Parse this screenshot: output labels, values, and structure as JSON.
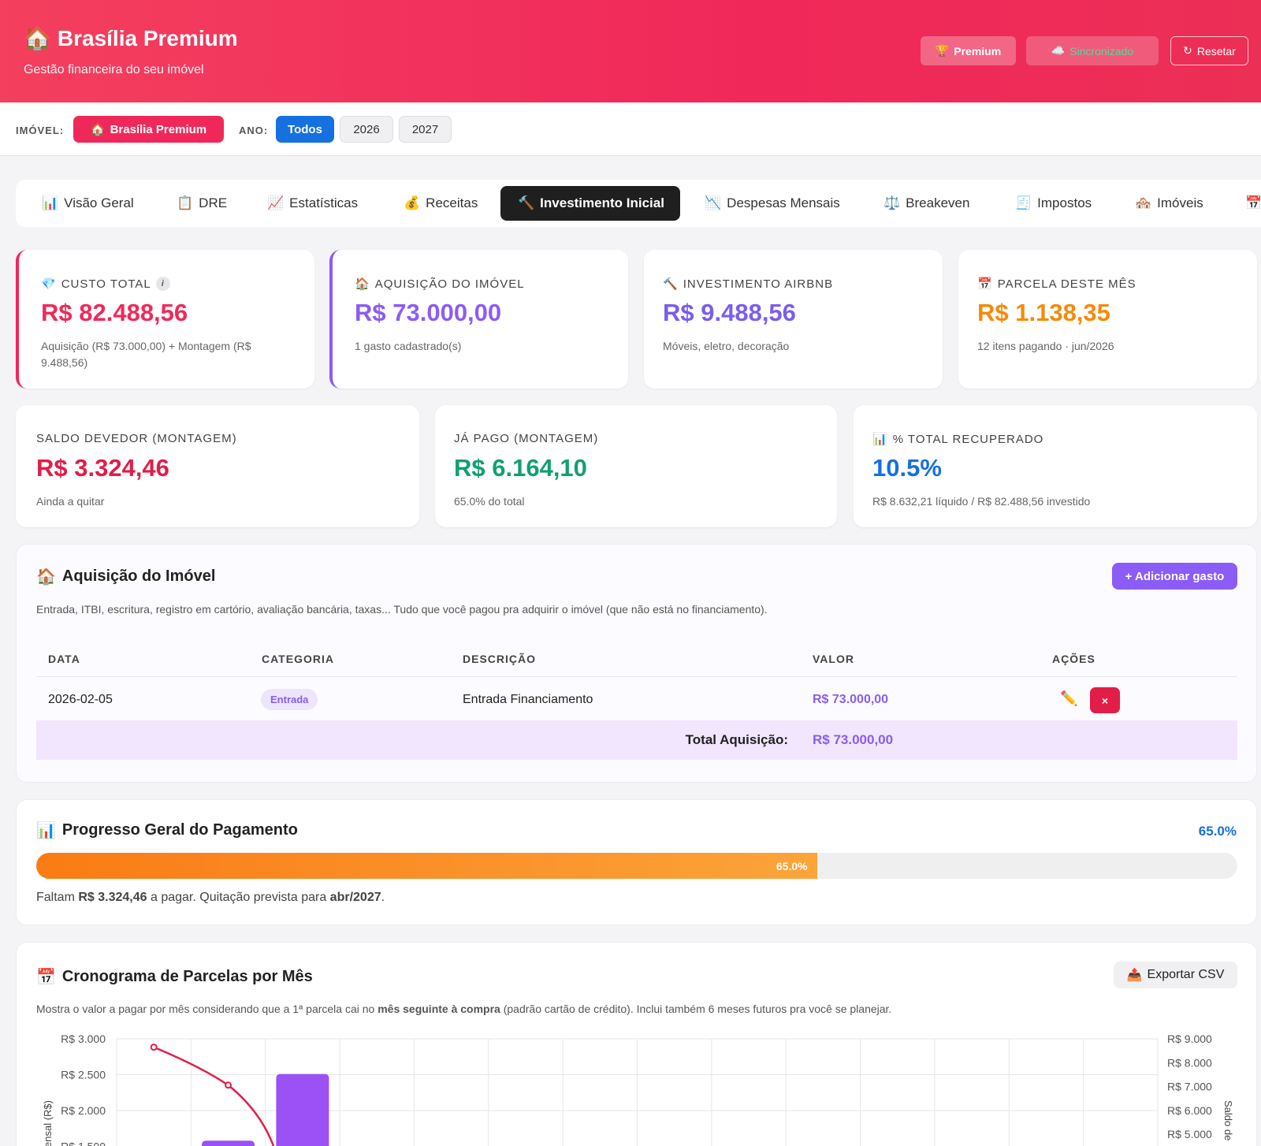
{
  "header": {
    "logo_icon": "🏠",
    "title": "Brasília Premium",
    "subtitle": "Gestão financeira do seu imóvel",
    "premium_label": "Premium",
    "premium_icon": "🏆",
    "sync_label": "Sincronizado",
    "sync_icon": "☁️",
    "reset_label": "Resetar",
    "reset_icon": "↻"
  },
  "filters": {
    "imovel_label": "IMÓVEL:",
    "imovel_icon": "🏠",
    "imovel_value": "Brasília Premium",
    "ano_label": "ANO:",
    "years": [
      "Todos",
      "2026",
      "2027"
    ],
    "selected_year": "Todos"
  },
  "tabs": [
    {
      "icon": "📊",
      "label": "Visão Geral"
    },
    {
      "icon": "📋",
      "label": "DRE"
    },
    {
      "icon": "📈",
      "label": "Estatísticas"
    },
    {
      "icon": "💰",
      "label": "Receitas"
    },
    {
      "icon": "🔨",
      "label": "Investimento Inicial",
      "active": true
    },
    {
      "icon": "📉",
      "label": "Despesas Mensais"
    },
    {
      "icon": "⚖️",
      "label": "Breakeven"
    },
    {
      "icon": "🧾",
      "label": "Impostos"
    },
    {
      "icon": "🏘️",
      "label": "Imóveis"
    },
    {
      "icon": "📅",
      "label": ""
    }
  ],
  "cards": {
    "custo_total": {
      "icon": "💎",
      "label": "CUSTO TOTAL",
      "info": "i",
      "value": "R$ 82.488,56",
      "note": "Aquisição (R$ 73.000,00) + Montagem (R$ 9.488,56)",
      "color": "#f0285a"
    },
    "aquisicao": {
      "icon": "🏠",
      "label": "AQUISIÇÃO DO IMÓVEL",
      "value": "R$ 73.000,00",
      "note": "1 gasto cadastrado(s)",
      "color": "#8b5cf6"
    },
    "airbnb": {
      "icon": "🔨",
      "label": "INVESTIMENTO AIRBNB",
      "value": "R$ 9.488,56",
      "note": "Móveis, eletro, decoração",
      "color": "#7c5cf0"
    },
    "parcela": {
      "icon": "📅",
      "label": "PARCELA DESTE MÊS",
      "value": "R$ 1.138,35",
      "note": "12 itens pagando · jun/2026",
      "color": "#f58a0b"
    },
    "saldo": {
      "label": "SALDO DEVEDOR (MONTAGEM)",
      "value": "R$ 3.324,46",
      "note": "Ainda a quitar",
      "color": "#e11d48"
    },
    "pago": {
      "label": "JÁ PAGO (MONTAGEM)",
      "value": "R$ 6.164,10",
      "note": "65.0% do total",
      "color": "#12a06e"
    },
    "recuperado": {
      "icon": "📊",
      "label": "% TOTAL RECUPERADO",
      "value": "10.5%",
      "note": "R$ 8.632,21 líquido / R$ 82.488,56 investido",
      "color": "#1570e0"
    }
  },
  "aquisicao_section": {
    "icon": "🏠",
    "title": "Aquisição do Imóvel",
    "add_label": "+ Adicionar gasto",
    "description": "Entrada, ITBI, escritura, registro em cartório, avaliação bancária, taxas... Tudo que você pagou pra adquirir o imóvel (que não está no financiamento).",
    "columns": [
      "DATA",
      "CATEGORIA",
      "DESCRIÇÃO",
      "VALOR",
      "AÇÕES"
    ],
    "rows": [
      {
        "data": "2026-02-05",
        "categoria": "Entrada",
        "descricao": "Entrada Financiamento",
        "valor": "R$ 73.000,00"
      }
    ],
    "edit_icon": "✏️",
    "delete_icon": "×",
    "total_label": "Total Aquisição:",
    "total_value": "R$ 73.000,00"
  },
  "progress_section": {
    "icon": "📊",
    "title": "Progresso Geral do Pagamento",
    "percent_label": "65.0%",
    "percent": 65.0,
    "bar_label": "65.0%",
    "text_prefix": "Faltam ",
    "text_amount": "R$ 3.324,46",
    "text_middle": " a pagar. Quitação prevista para ",
    "text_date": "abr/2027",
    "text_suffix": "."
  },
  "cronograma_section": {
    "icon": "📅",
    "title": "Cronograma de Parcelas por Mês",
    "csv_icon": "📤",
    "csv_label": "Exportar CSV",
    "desc_prefix": "Mostra o valor a pagar por mês considerando que a 1ª parcela cai no ",
    "desc_bold": "mês seguinte à compra",
    "desc_suffix": " (padrão cartão de crédito). Inclui também 6 meses futuros pra você se planejar."
  },
  "chart_data": {
    "type": "bar",
    "left_axis_ticks": [
      "R$ 3.000",
      "R$ 2.500",
      "R$ 2.000",
      "R$ 1.500"
    ],
    "right_axis_ticks": [
      "R$ 9.000",
      "R$ 8.000",
      "R$ 7.000",
      "R$ 6.000",
      "R$ 5.000"
    ],
    "left_axis_label": "ensal (R$)",
    "right_axis_label": "Saldo de",
    "left_ylim": [
      1350,
      3000
    ],
    "right_ylim": [
      4500,
      9000
    ],
    "series": [
      {
        "type": "bar",
        "values": [
          null,
          1580,
          2510
        ],
        "color": "#9b51f5"
      },
      {
        "type": "line",
        "axis": "right",
        "values": [
          8650,
          7060,
          4500
        ],
        "color": "#e11d48"
      }
    ]
  }
}
